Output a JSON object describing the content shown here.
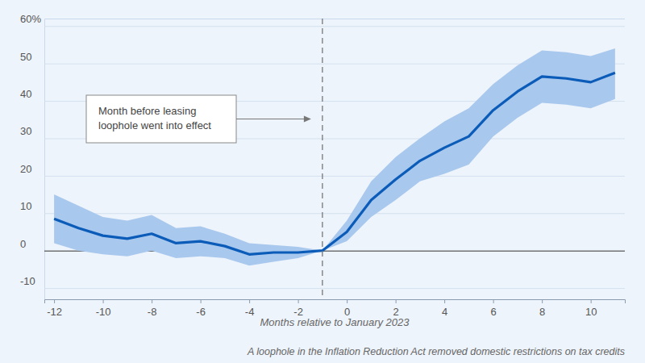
{
  "chart_data": {
    "type": "line",
    "x_label": "Months relative to January 2023",
    "caption": "A loophole in the Inflation Reduction Act removed domestic restrictions on tax credits",
    "x": [
      -12,
      -11,
      -10,
      -9,
      -8,
      -7,
      -6,
      -5,
      -4,
      -3,
      -2,
      -1,
      0,
      1,
      2,
      3,
      4,
      5,
      6,
      7,
      8,
      9,
      10,
      11
    ],
    "series": [
      {
        "color": "#0b5cb8",
        "band_color": "#a9c8ee",
        "values": [
          8.5,
          6,
          4,
          3.2,
          4.5,
          2,
          2.5,
          1.2,
          -1,
          -0.5,
          -0.5,
          0,
          5,
          13.5,
          19,
          24,
          27.5,
          30.5,
          37.5,
          42.5,
          46.5,
          46,
          45,
          47.5
        ],
        "lower": [
          2,
          0,
          -1,
          -1.5,
          0,
          -2,
          -1.5,
          -2,
          -4,
          -3,
          -2,
          0,
          2.5,
          9,
          13.5,
          18.5,
          20.5,
          23,
          30.5,
          35.5,
          39.5,
          39,
          38,
          40.5
        ],
        "upper": [
          15,
          12,
          9,
          8,
          9.5,
          6,
          6.5,
          4.5,
          2,
          1.5,
          1,
          0,
          8,
          18.5,
          25,
          30,
          34.5,
          38,
          44.5,
          49.5,
          53.5,
          53,
          52,
          54
        ]
      }
    ],
    "annotations": [
      {
        "x": -1,
        "text": "Month before leasing\nloophole went into effect"
      }
    ],
    "xlim": [
      -12.4,
      11.4
    ],
    "xticks": [
      -12,
      -10,
      -8,
      -6,
      -4,
      -2,
      0,
      2,
      4,
      6,
      8,
      10
    ],
    "ylim": [
      -13,
      62
    ],
    "yticks": [
      -10,
      0,
      10,
      20,
      30,
      40,
      50,
      {
        "value": 60,
        "label": "60%"
      }
    ],
    "grid": true
  }
}
